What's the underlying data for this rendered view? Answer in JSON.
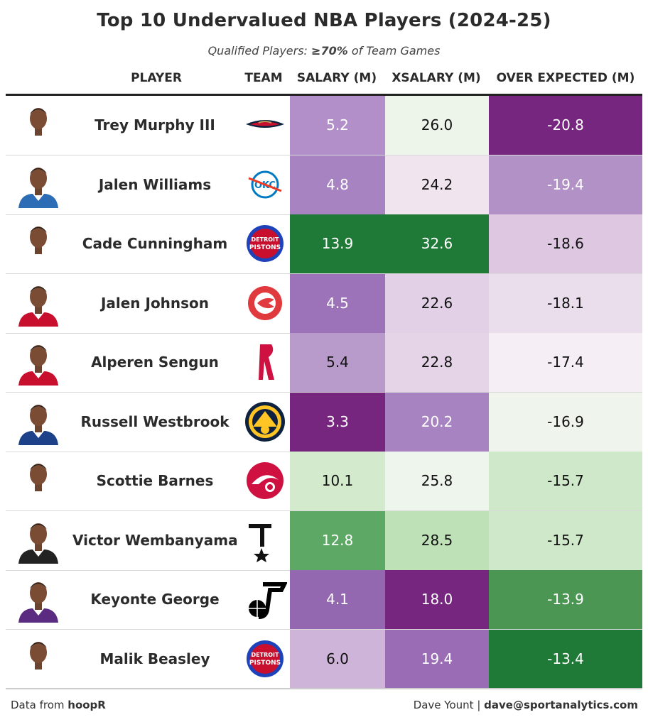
{
  "title": "Top 10 Undervalued NBA Players (2024-25)",
  "subtitle_prefix": "Qualified Players: ",
  "subtitle_bold": "≥70%",
  "subtitle_suffix": " of Team Games",
  "headers": {
    "player": "PLAYER",
    "team": "TEAM",
    "salary": "SALARY (M)",
    "xsalary": "XSALARY (M)",
    "over": "OVER EXPECTED (M)"
  },
  "chart_data": {
    "type": "table",
    "title": "Top 10 Undervalued NBA Players (2024-25)",
    "columns": [
      "PLAYER",
      "TEAM",
      "SALARY (M)",
      "XSALARY (M)",
      "OVER EXPECTED (M)"
    ],
    "rows": [
      {
        "player": "Trey Murphy III",
        "team": "pelicans-logo",
        "salary": "5.2",
        "xsalary": "26.0",
        "over": "-20.8",
        "colors": {
          "salary": "#b28fc8",
          "xsalary": "#edf5ea",
          "over": "#76267f"
        },
        "text": {
          "salary": "#ffffff",
          "xsalary": "#111111",
          "over": "#ffffff"
        }
      },
      {
        "player": "Jalen Williams",
        "team": "thunder-logo",
        "salary": "4.8",
        "xsalary": "24.2",
        "over": "-19.4",
        "colors": {
          "salary": "#a783c1",
          "xsalary": "#f0e5ef",
          "over": "#b291c6"
        },
        "text": {
          "salary": "#ffffff",
          "xsalary": "#111111",
          "over": "#ffffff"
        }
      },
      {
        "player": "Cade Cunningham",
        "team": "pistons-logo",
        "salary": "13.9",
        "xsalary": "32.6",
        "over": "-18.6",
        "colors": {
          "salary": "#1e7a36",
          "xsalary": "#1e7a36",
          "over": "#ddc7e1"
        },
        "text": {
          "salary": "#ffffff",
          "xsalary": "#ffffff",
          "over": "#111111"
        }
      },
      {
        "player": "Jalen Johnson",
        "team": "hawks-logo",
        "salary": "4.5",
        "xsalary": "22.6",
        "over": "-18.1",
        "colors": {
          "salary": "#9c73b8",
          "xsalary": "#e2d0e6",
          "over": "#eadeed"
        },
        "text": {
          "salary": "#ffffff",
          "xsalary": "#111111",
          "over": "#111111"
        }
      },
      {
        "player": "Alperen Sengun",
        "team": "rockets-logo",
        "salary": "5.4",
        "xsalary": "22.8",
        "over": "-17.4",
        "colors": {
          "salary": "#b89acb",
          "xsalary": "#e5d4e8",
          "over": "#f5eef5"
        },
        "text": {
          "salary": "#111111",
          "xsalary": "#111111",
          "over": "#111111"
        }
      },
      {
        "player": "Russell Westbrook",
        "team": "nuggets-logo",
        "salary": "3.3",
        "xsalary": "20.2",
        "over": "-16.9",
        "colors": {
          "salary": "#76267f",
          "xsalary": "#a783c1",
          "over": "#eff5ec"
        },
        "text": {
          "salary": "#ffffff",
          "xsalary": "#ffffff",
          "over": "#111111"
        }
      },
      {
        "player": "Scottie Barnes",
        "team": "raptors-logo",
        "salary": "10.1",
        "xsalary": "25.8",
        "over": "-15.7",
        "colors": {
          "salary": "#d3ebcc",
          "xsalary": "#eef5ec",
          "over": "#cfe8c9"
        },
        "text": {
          "salary": "#111111",
          "xsalary": "#111111",
          "over": "#111111"
        }
      },
      {
        "player": "Victor Wembanyama",
        "team": "spurs-logo",
        "salary": "12.8",
        "xsalary": "28.5",
        "over": "-15.7",
        "colors": {
          "salary": "#5da865",
          "xsalary": "#bfe1b7",
          "over": "#cfe8c9"
        },
        "text": {
          "salary": "#ffffff",
          "xsalary": "#111111",
          "over": "#111111"
        }
      },
      {
        "player": "Keyonte George",
        "team": "jazz-logo",
        "salary": "4.1",
        "xsalary": "18.0",
        "over": "-13.9",
        "colors": {
          "salary": "#9467b1",
          "xsalary": "#76267f",
          "over": "#4b9653"
        },
        "text": {
          "salary": "#ffffff",
          "xsalary": "#ffffff",
          "over": "#ffffff"
        }
      },
      {
        "player": "Malik Beasley",
        "team": "pistons-logo",
        "salary": "6.0",
        "xsalary": "19.4",
        "over": "-13.4",
        "colors": {
          "salary": "#cdb4d8",
          "xsalary": "#9a6cb5",
          "over": "#1e7a36"
        },
        "text": {
          "salary": "#111111",
          "xsalary": "#ffffff",
          "over": "#ffffff"
        }
      }
    ]
  },
  "footer": {
    "left_prefix": "Data from ",
    "left_bold": "hoopR",
    "right_prefix": "Dave Yount | ",
    "right_bold": "dave@sportanalytics.com"
  }
}
